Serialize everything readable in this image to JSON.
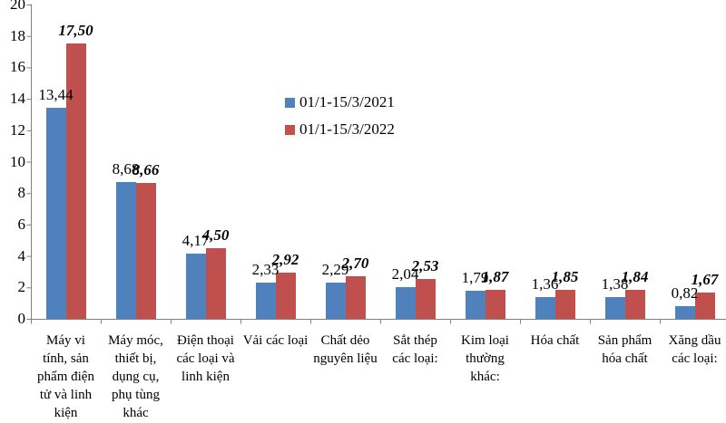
{
  "chart_data": {
    "type": "bar",
    "title": "",
    "xlabel": "",
    "ylabel": "",
    "ylim": [
      0,
      20
    ],
    "yticks": [
      0,
      2,
      4,
      6,
      8,
      10,
      12,
      14,
      16,
      18,
      20
    ],
    "grid": false,
    "legend_position": "inside-top-center",
    "axis_color": "#808080",
    "text_color": "#000000",
    "categories": [
      "Máy vi tính, sản phẩm điện tử và linh kiện",
      "Máy móc, thiết bị, dụng cụ, phụ tùng khác",
      "Điện thoại các loại và linh kiện",
      "Vải các loại",
      "Chất dẻo nguyên liệu",
      "Sắt thép các loại:",
      "Kim loại thường khác:",
      "Hóa chất",
      "Sản phẩm hóa chất",
      "Xăng dầu các loại:"
    ],
    "series": [
      {
        "name": "01/1-15/3/2021",
        "color": "#4F81BD",
        "values": [
          13.44,
          8.68,
          4.17,
          2.33,
          2.29,
          2.04,
          1.79,
          1.36,
          1.38,
          0.82
        ],
        "value_labels": [
          "13,44",
          "8,68",
          "4,17",
          "2,33",
          "2,29",
          "2,04",
          "1,79",
          "1,36",
          "1,38",
          "0,82"
        ],
        "label_font_style": "normal"
      },
      {
        "name": "01/1-15/3/2022",
        "color": "#C0504D",
        "values": [
          17.5,
          8.66,
          4.5,
          2.92,
          2.7,
          2.53,
          1.87,
          1.85,
          1.84,
          1.67
        ],
        "value_labels": [
          "17,50",
          "8,66",
          "4,50",
          "2,92",
          "2,70",
          "2,53",
          "1,87",
          "1,85",
          "1,84",
          "1,67"
        ],
        "label_font_style": "bold-italic"
      }
    ]
  }
}
